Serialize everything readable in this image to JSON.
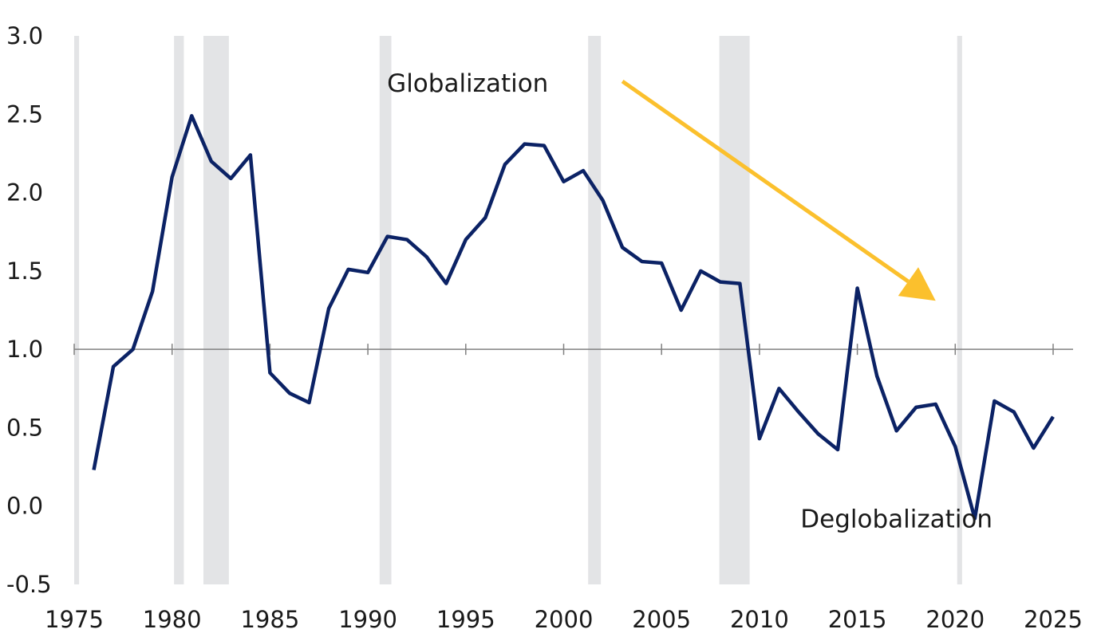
{
  "chart_data": {
    "type": "line",
    "title": "",
    "xlabel": "",
    "ylabel": "",
    "xlim": [
      1975,
      2025.8
    ],
    "ylim": [
      -0.5,
      3.0
    ],
    "x_ticks": [
      "1975",
      "1980",
      "1985",
      "1990",
      "1995",
      "2000",
      "2005",
      "2010",
      "2015",
      "2020",
      "2025"
    ],
    "y_ticks": [
      "3.0",
      "2.5",
      "2.0",
      "1.5",
      "1.0",
      "0.5",
      "0.0",
      "-0.5"
    ],
    "y_tick_values": [
      3.0,
      2.5,
      2.0,
      1.5,
      1.0,
      0.5,
      0.0,
      -0.5
    ],
    "reference_line": 1.0,
    "grid": false,
    "colors": {
      "line": "#0b2265",
      "recession": "#e3e4e6",
      "arrow": "#fbc02d",
      "axis": "#808080"
    },
    "series": [
      {
        "x": [
          1976,
          1977,
          1978,
          1979,
          1980,
          1981,
          1982,
          1983,
          1984,
          1985,
          1986,
          1987,
          1988,
          1989,
          1990,
          1991,
          1992,
          1993,
          1994,
          1995,
          1996,
          1997,
          1998,
          1999,
          2000,
          2001,
          2002,
          2003,
          2004,
          2005,
          2006,
          2007,
          2008,
          2009,
          2010,
          2011,
          2012,
          2013,
          2014,
          2015,
          2016,
          2017,
          2018,
          2019,
          2020,
          2021,
          2022,
          2023,
          2024,
          2025
        ],
        "y": [
          0.23,
          0.89,
          1.0,
          1.37,
          2.1,
          2.49,
          2.2,
          2.09,
          2.24,
          0.85,
          0.72,
          0.66,
          1.26,
          1.51,
          1.49,
          1.72,
          1.7,
          1.59,
          1.42,
          1.7,
          1.84,
          2.18,
          2.31,
          2.3,
          2.07,
          2.14,
          1.95,
          1.65,
          1.56,
          1.55,
          1.25,
          1.5,
          1.43,
          1.42,
          0.43,
          0.75,
          0.6,
          0.46,
          0.36,
          1.39,
          0.83,
          0.48,
          0.63,
          0.65,
          0.38,
          -0.08,
          0.67,
          0.6,
          0.37,
          0.57
        ]
      }
    ],
    "shaded_periods": [
      [
        1975.0,
        1975.25
      ],
      [
        1980.1,
        1980.6
      ],
      [
        1981.6,
        1982.9
      ],
      [
        1990.6,
        1991.2
      ],
      [
        2001.25,
        2001.9
      ],
      [
        2007.95,
        2009.5
      ],
      [
        2020.1,
        2020.35
      ]
    ],
    "annotations": {
      "globalization": {
        "text": "Globalization",
        "x": 1995.1,
        "y": 2.7
      },
      "deglobalization": {
        "text": "Deglobalization",
        "x": 2017.0,
        "y": -0.08
      }
    },
    "arrow": {
      "from": [
        2003.0,
        2.71
      ],
      "to": [
        2019.0,
        1.31
      ]
    }
  }
}
